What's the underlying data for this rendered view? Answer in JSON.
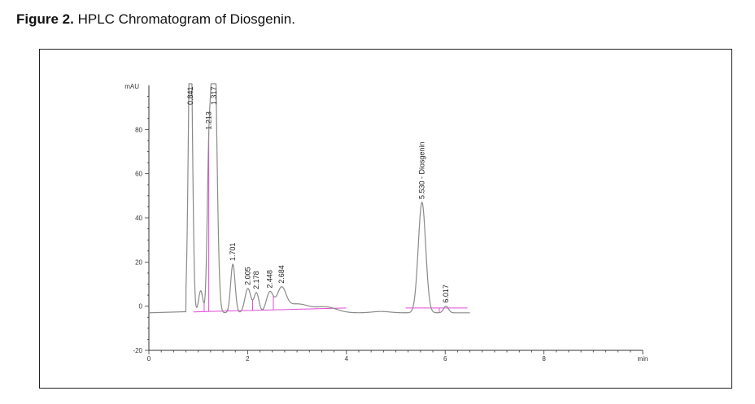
{
  "caption": {
    "figure_label": "Figure 2.",
    "text": "HPLC Chromatogram of Diosgenin."
  },
  "colors": {
    "trace": "#8a8a8a",
    "baseline": "#e24ad6",
    "axis": "#333333",
    "frame": "#222222"
  },
  "chart_data": {
    "type": "line",
    "title": "",
    "xlabel": "min",
    "ylabel": "mAU",
    "xlim": [
      0,
      10
    ],
    "ylim": [
      -20,
      100
    ],
    "x_ticks": [
      0,
      2,
      4,
      6,
      8
    ],
    "y_ticks": [
      -20,
      0,
      20,
      40,
      60,
      80
    ],
    "grid": false,
    "baseline_offset": -3,
    "peaks": [
      {
        "label": "0.841",
        "rt": 0.841,
        "height": 100,
        "width": 0.04,
        "clipped": true
      },
      {
        "label": "1.213",
        "rt": 1.213,
        "height": 58,
        "width": 0.035
      },
      {
        "label": "1.317",
        "rt": 1.317,
        "height": 100,
        "width": 0.055,
        "clipped": true
      },
      {
        "label": "1.701",
        "rt": 1.701,
        "height": 22,
        "width": 0.045
      },
      {
        "label": "2.005",
        "rt": 2.005,
        "height": 11,
        "width": 0.06
      },
      {
        "label": "2.178",
        "rt": 2.178,
        "height": 9,
        "width": 0.05
      },
      {
        "label": "2.448",
        "rt": 2.448,
        "height": 9,
        "width": 0.07
      },
      {
        "label": "2.684",
        "rt": 2.684,
        "height": 10,
        "width": 0.09
      },
      {
        "label": "5.530 - Diosgenin",
        "rt": 5.53,
        "height": 50,
        "width": 0.075
      },
      {
        "label": "6.017",
        "rt": 6.017,
        "height": 3,
        "width": 0.05
      }
    ],
    "trace_end": 6.5
  }
}
